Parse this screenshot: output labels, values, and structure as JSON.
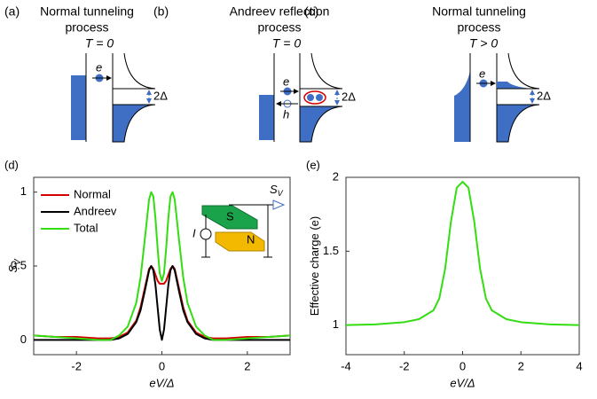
{
  "panels": [
    {
      "label": "(a)",
      "title_lines": [
        "Normal tunneling",
        "process"
      ],
      "temperature": "T = 0",
      "electron": "e",
      "gap": "2Δ"
    },
    {
      "label": "(b)",
      "title_lines": [
        "Andreev reflection",
        "process"
      ],
      "temperature": "T = 0",
      "electron": "e",
      "hole": "h",
      "gap": "2Δ"
    },
    {
      "label": "(c)",
      "title_lines": [
        "Normal tunneling",
        "process"
      ],
      "temperature": "T > 0",
      "electron": "e",
      "gap": "2Δ"
    }
  ],
  "inset": {
    "s": "S",
    "n": "N",
    "current": "I",
    "signal": "S",
    "signal_sub": "V"
  },
  "chart_data": [
    {
      "type": "line",
      "panel_label": "(d)",
      "xlabel": "eV/Δ",
      "ylabel": "S",
      "ylabel_sub": "V",
      "x": [
        -3,
        -2.5,
        -2,
        -1.5,
        -1.2,
        -1,
        -0.8,
        -0.6,
        -0.5,
        -0.4,
        -0.3,
        -0.25,
        -0.2,
        -0.15,
        -0.1,
        -0.05,
        0,
        0.05,
        0.1,
        0.15,
        0.2,
        0.25,
        0.3,
        0.4,
        0.5,
        0.6,
        0.8,
        1,
        1.2,
        1.5,
        2,
        2.5,
        3
      ],
      "series": [
        {
          "name": "Normal",
          "color": "#d40000",
          "values": [
            0.03,
            0.02,
            0.02,
            0.01,
            0.01,
            0.02,
            0.05,
            0.13,
            0.22,
            0.35,
            0.48,
            0.5,
            0.48,
            0.44,
            0.4,
            0.38,
            0.38,
            0.38,
            0.4,
            0.44,
            0.48,
            0.5,
            0.48,
            0.35,
            0.22,
            0.13,
            0.05,
            0.02,
            0.01,
            0.01,
            0.02,
            0.02,
            0.03
          ]
        },
        {
          "name": "Andreev",
          "color": "#000000",
          "values": [
            0,
            0,
            0,
            0,
            0,
            0.01,
            0.04,
            0.12,
            0.2,
            0.33,
            0.47,
            0.5,
            0.47,
            0.37,
            0.22,
            0.07,
            0,
            0.07,
            0.22,
            0.37,
            0.47,
            0.5,
            0.47,
            0.33,
            0.2,
            0.12,
            0.04,
            0.01,
            0,
            0,
            0,
            0,
            0
          ]
        },
        {
          "name": "Total",
          "color": "#33dd11",
          "values": [
            0.03,
            0.02,
            0.01,
            0,
            0,
            0.03,
            0.09,
            0.25,
            0.42,
            0.68,
            0.95,
            1,
            0.97,
            0.82,
            0.62,
            0.45,
            0.4,
            0.45,
            0.62,
            0.82,
            0.97,
            1,
            0.95,
            0.68,
            0.42,
            0.25,
            0.09,
            0.03,
            0,
            0,
            0.01,
            0.02,
            0.03
          ]
        }
      ],
      "xlim": [
        -3,
        3
      ],
      "xticks": [
        -2,
        0,
        2
      ],
      "ylim": [
        -0.1,
        1.1
      ],
      "yticks": [
        0,
        0.5,
        1
      ],
      "legend": "upper left"
    },
    {
      "type": "line",
      "panel_label": "(e)",
      "xlabel": "eV/Δ",
      "ylabel": "Effective charge (e)",
      "x": [
        -4,
        -3,
        -2,
        -1.5,
        -1,
        -0.8,
        -0.6,
        -0.4,
        -0.2,
        0,
        0.2,
        0.4,
        0.6,
        0.8,
        1,
        1.5,
        2,
        3,
        4
      ],
      "series": [
        {
          "color": "#33dd11",
          "values": [
            1,
            1.005,
            1.02,
            1.04,
            1.1,
            1.18,
            1.38,
            1.7,
            1.93,
            1.97,
            1.93,
            1.7,
            1.38,
            1.18,
            1.1,
            1.04,
            1.02,
            1.005,
            1
          ]
        }
      ],
      "xlim": [
        -4,
        4
      ],
      "xticks": [
        -4,
        -2,
        0,
        2,
        4
      ],
      "ylim": [
        0.8,
        2
      ],
      "yticks": [
        1,
        1.5,
        2
      ]
    }
  ]
}
